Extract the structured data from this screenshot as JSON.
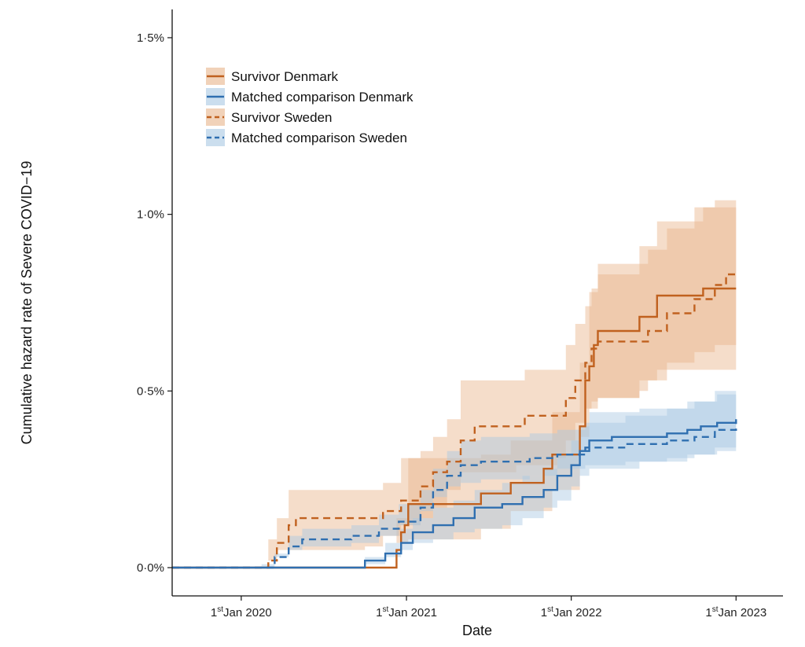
{
  "colors": {
    "survivor": "#c0611f",
    "comparison": "#2f6fb0",
    "survivor_band": "#e8b48a",
    "comparison_band": "#a8c8e3"
  },
  "chart_data": {
    "type": "line",
    "title": "",
    "xlabel": "Date",
    "ylabel": "Cumulative hazard rate of Severe COVID−19",
    "xlim": [
      "2019-08-01",
      "2023-04-15"
    ],
    "ylim": [
      -0.08,
      1.58
    ],
    "y_ticks": [
      {
        "value": 0.0,
        "label": "0·0%"
      },
      {
        "value": 0.5,
        "label": "0·5%"
      },
      {
        "value": 1.0,
        "label": "1·0%"
      },
      {
        "value": 1.5,
        "label": "1·5%"
      }
    ],
    "x_ticks": [
      {
        "value": "2020-01-01",
        "sup": "st",
        "rest": "Jan 2020"
      },
      {
        "value": "2021-01-01",
        "sup": "st",
        "rest": "Jan 2021"
      },
      {
        "value": "2022-01-01",
        "sup": "st",
        "rest": "Jan 2022"
      },
      {
        "value": "2023-01-01",
        "sup": "st",
        "rest": "Jan 2023"
      }
    ],
    "x_tick_prefix": "1",
    "legend": {
      "position": "top-left",
      "entries": [
        {
          "label": "Survivor Denmark",
          "color_key": "survivor",
          "dash": false
        },
        {
          "label": "Matched comparison Denmark",
          "color_key": "comparison",
          "dash": false
        },
        {
          "label": "Survivor Sweden",
          "color_key": "survivor",
          "dash": true
        },
        {
          "label": "Matched comparison Sweden",
          "color_key": "comparison",
          "dash": true
        }
      ]
    },
    "series": [
      {
        "name": "Survivor Denmark",
        "color_key": "survivor",
        "dash": false,
        "points": [
          [
            "2019-08-01",
            0
          ],
          [
            "2020-02-15",
            0
          ],
          [
            "2020-12-01",
            0
          ],
          [
            "2020-12-10",
            0.05
          ],
          [
            "2020-12-20",
            0.1
          ],
          [
            "2020-12-28",
            0.12
          ],
          [
            "2021-01-05",
            0.18
          ],
          [
            "2021-06-01",
            0.18
          ],
          [
            "2021-06-15",
            0.21
          ],
          [
            "2021-08-10",
            0.21
          ],
          [
            "2021-08-20",
            0.24
          ],
          [
            "2021-11-01",
            0.28
          ],
          [
            "2021-11-20",
            0.32
          ],
          [
            "2022-01-01",
            0.32
          ],
          [
            "2022-01-20",
            0.4
          ],
          [
            "2022-02-01",
            0.53
          ],
          [
            "2022-02-10",
            0.57
          ],
          [
            "2022-02-20",
            0.63
          ],
          [
            "2022-03-01",
            0.67
          ],
          [
            "2022-05-15",
            0.67
          ],
          [
            "2022-06-01",
            0.71
          ],
          [
            "2022-07-10",
            0.77
          ],
          [
            "2022-10-01",
            0.77
          ],
          [
            "2022-10-20",
            0.79
          ],
          [
            "2023-01-01",
            0.79
          ]
        ]
      },
      {
        "name": "Matched comparison Denmark",
        "color_key": "comparison",
        "dash": false,
        "points": [
          [
            "2019-08-01",
            0
          ],
          [
            "2020-02-15",
            0
          ],
          [
            "2020-10-01",
            0.02
          ],
          [
            "2020-11-15",
            0.04
          ],
          [
            "2020-12-20",
            0.07
          ],
          [
            "2021-01-15",
            0.1
          ],
          [
            "2021-03-01",
            0.12
          ],
          [
            "2021-04-15",
            0.14
          ],
          [
            "2021-06-01",
            0.17
          ],
          [
            "2021-08-01",
            0.18
          ],
          [
            "2021-09-15",
            0.2
          ],
          [
            "2021-11-01",
            0.22
          ],
          [
            "2021-12-01",
            0.26
          ],
          [
            "2022-01-01",
            0.29
          ],
          [
            "2022-01-20",
            0.33
          ],
          [
            "2022-02-10",
            0.36
          ],
          [
            "2022-04-01",
            0.37
          ],
          [
            "2022-06-01",
            0.37
          ],
          [
            "2022-08-01",
            0.38
          ],
          [
            "2022-09-15",
            0.39
          ],
          [
            "2022-10-15",
            0.4
          ],
          [
            "2022-11-20",
            0.41
          ],
          [
            "2023-01-01",
            0.42
          ]
        ]
      },
      {
        "name": "Survivor Sweden",
        "color_key": "survivor",
        "dash": true,
        "points": [
          [
            "2019-08-01",
            0
          ],
          [
            "2020-02-15",
            0
          ],
          [
            "2020-03-01",
            0.02
          ],
          [
            "2020-03-20",
            0.07
          ],
          [
            "2020-04-15",
            0.12
          ],
          [
            "2020-05-01",
            0.14
          ],
          [
            "2020-10-01",
            0.14
          ],
          [
            "2020-11-10",
            0.16
          ],
          [
            "2020-12-20",
            0.19
          ],
          [
            "2021-02-01",
            0.23
          ],
          [
            "2021-03-01",
            0.27
          ],
          [
            "2021-04-01",
            0.3
          ],
          [
            "2021-05-01",
            0.36
          ],
          [
            "2021-06-01",
            0.4
          ],
          [
            "2021-09-01",
            0.4
          ],
          [
            "2021-09-20",
            0.43
          ],
          [
            "2021-12-01",
            0.43
          ],
          [
            "2021-12-20",
            0.48
          ],
          [
            "2022-01-10",
            0.53
          ],
          [
            "2022-02-01",
            0.58
          ],
          [
            "2022-02-15",
            0.62
          ],
          [
            "2022-03-01",
            0.64
          ],
          [
            "2022-06-01",
            0.64
          ],
          [
            "2022-06-20",
            0.67
          ],
          [
            "2022-08-01",
            0.72
          ],
          [
            "2022-10-01",
            0.76
          ],
          [
            "2022-11-15",
            0.8
          ],
          [
            "2022-12-10",
            0.83
          ],
          [
            "2023-01-01",
            0.83
          ]
        ]
      },
      {
        "name": "Matched comparison Sweden",
        "color_key": "comparison",
        "dash": true,
        "points": [
          [
            "2019-08-01",
            0
          ],
          [
            "2020-02-15",
            0
          ],
          [
            "2020-03-15",
            0.03
          ],
          [
            "2020-04-15",
            0.06
          ],
          [
            "2020-05-15",
            0.08
          ],
          [
            "2020-07-01",
            0.08
          ],
          [
            "2020-09-01",
            0.09
          ],
          [
            "2020-11-01",
            0.11
          ],
          [
            "2020-12-15",
            0.13
          ],
          [
            "2021-02-01",
            0.17
          ],
          [
            "2021-03-01",
            0.22
          ],
          [
            "2021-04-01",
            0.26
          ],
          [
            "2021-05-01",
            0.29
          ],
          [
            "2021-06-15",
            0.3
          ],
          [
            "2021-08-01",
            0.3
          ],
          [
            "2021-10-01",
            0.31
          ],
          [
            "2021-12-01",
            0.32
          ],
          [
            "2022-02-01",
            0.34
          ],
          [
            "2022-05-01",
            0.35
          ],
          [
            "2022-08-01",
            0.36
          ],
          [
            "2022-10-01",
            0.37
          ],
          [
            "2022-11-15",
            0.39
          ],
          [
            "2023-01-01",
            0.41
          ]
        ]
      }
    ],
    "bands": [
      {
        "series": "Survivor Sweden",
        "color_key": "survivor_band",
        "points": [
          [
            "2020-02-15",
            0,
            0
          ],
          [
            "2020-03-01",
            0,
            0.08
          ],
          [
            "2020-03-20",
            0.02,
            0.14
          ],
          [
            "2020-04-15",
            0.05,
            0.22
          ],
          [
            "2020-10-01",
            0.05,
            0.22
          ],
          [
            "2020-11-10",
            0.06,
            0.24
          ],
          [
            "2020-12-20",
            0.09,
            0.31
          ],
          [
            "2021-02-01",
            0.12,
            0.33
          ],
          [
            "2021-03-01",
            0.14,
            0.37
          ],
          [
            "2021-04-01",
            0.17,
            0.42
          ],
          [
            "2021-05-01",
            0.22,
            0.53
          ],
          [
            "2021-06-01",
            0.27,
            0.53
          ],
          [
            "2021-09-01",
            0.27,
            0.53
          ],
          [
            "2021-09-20",
            0.29,
            0.56
          ],
          [
            "2021-12-01",
            0.29,
            0.56
          ],
          [
            "2021-12-20",
            0.31,
            0.63
          ],
          [
            "2022-01-10",
            0.36,
            0.69
          ],
          [
            "2022-02-01",
            0.41,
            0.74
          ],
          [
            "2022-02-15",
            0.45,
            0.79
          ],
          [
            "2022-03-01",
            0.47,
            0.83
          ],
          [
            "2022-06-01",
            0.48,
            0.86
          ],
          [
            "2022-06-20",
            0.5,
            0.9
          ],
          [
            "2022-08-01",
            0.53,
            0.96
          ],
          [
            "2022-10-01",
            0.58,
            1.02
          ],
          [
            "2022-11-15",
            0.61,
            1.04
          ],
          [
            "2023-01-01",
            0.63,
            1.05
          ]
        ]
      },
      {
        "series": "Survivor Denmark",
        "color_key": "survivor_band",
        "points": [
          [
            "2020-12-01",
            0,
            0
          ],
          [
            "2020-12-10",
            0,
            0.14
          ],
          [
            "2021-01-05",
            0.07,
            0.31
          ],
          [
            "2021-06-15",
            0.08,
            0.32
          ],
          [
            "2021-08-20",
            0.11,
            0.36
          ],
          [
            "2021-11-20",
            0.16,
            0.44
          ],
          [
            "2022-01-20",
            0.22,
            0.58
          ],
          [
            "2022-02-10",
            0.37,
            0.78
          ],
          [
            "2022-03-01",
            0.45,
            0.86
          ],
          [
            "2022-06-01",
            0.48,
            0.91
          ],
          [
            "2022-07-10",
            0.53,
            0.98
          ],
          [
            "2022-10-20",
            0.56,
            1.02
          ],
          [
            "2023-01-01",
            0.56,
            1.02
          ]
        ]
      },
      {
        "series": "Matched comparison Sweden",
        "color_key": "comparison_band",
        "points": [
          [
            "2020-02-15",
            0,
            0
          ],
          [
            "2020-03-15",
            0.01,
            0.04
          ],
          [
            "2020-04-15",
            0.03,
            0.09
          ],
          [
            "2020-05-15",
            0.05,
            0.11
          ],
          [
            "2020-09-01",
            0.06,
            0.12
          ],
          [
            "2020-11-01",
            0.07,
            0.15
          ],
          [
            "2020-12-15",
            0.09,
            0.18
          ],
          [
            "2021-02-01",
            0.12,
            0.22
          ],
          [
            "2021-03-01",
            0.16,
            0.28
          ],
          [
            "2021-04-01",
            0.2,
            0.33
          ],
          [
            "2021-05-01",
            0.23,
            0.36
          ],
          [
            "2021-06-15",
            0.24,
            0.37
          ],
          [
            "2021-10-01",
            0.25,
            0.38
          ],
          [
            "2021-12-01",
            0.26,
            0.39
          ],
          [
            "2022-02-01",
            0.28,
            0.41
          ],
          [
            "2022-05-01",
            0.29,
            0.43
          ],
          [
            "2022-08-01",
            0.3,
            0.45
          ],
          [
            "2022-10-01",
            0.31,
            0.47
          ],
          [
            "2022-11-15",
            0.32,
            0.5
          ],
          [
            "2023-01-01",
            0.34,
            0.52
          ]
        ]
      },
      {
        "series": "Matched comparison Denmark",
        "color_key": "comparison_band",
        "points": [
          [
            "2020-10-01",
            0,
            0.03
          ],
          [
            "2020-11-15",
            0.01,
            0.07
          ],
          [
            "2020-12-20",
            0.03,
            0.11
          ],
          [
            "2021-01-15",
            0.05,
            0.14
          ],
          [
            "2021-03-01",
            0.07,
            0.17
          ],
          [
            "2021-04-15",
            0.08,
            0.19
          ],
          [
            "2021-06-01",
            0.1,
            0.22
          ],
          [
            "2021-08-01",
            0.11,
            0.24
          ],
          [
            "2021-09-15",
            0.12,
            0.26
          ],
          [
            "2021-11-01",
            0.14,
            0.28
          ],
          [
            "2021-12-01",
            0.17,
            0.32
          ],
          [
            "2022-01-01",
            0.19,
            0.36
          ],
          [
            "2022-01-20",
            0.23,
            0.4
          ],
          [
            "2022-02-10",
            0.26,
            0.44
          ],
          [
            "2022-06-01",
            0.28,
            0.45
          ],
          [
            "2022-09-15",
            0.3,
            0.47
          ],
          [
            "2022-11-20",
            0.32,
            0.49
          ],
          [
            "2023-01-01",
            0.33,
            0.5
          ]
        ]
      }
    ]
  }
}
